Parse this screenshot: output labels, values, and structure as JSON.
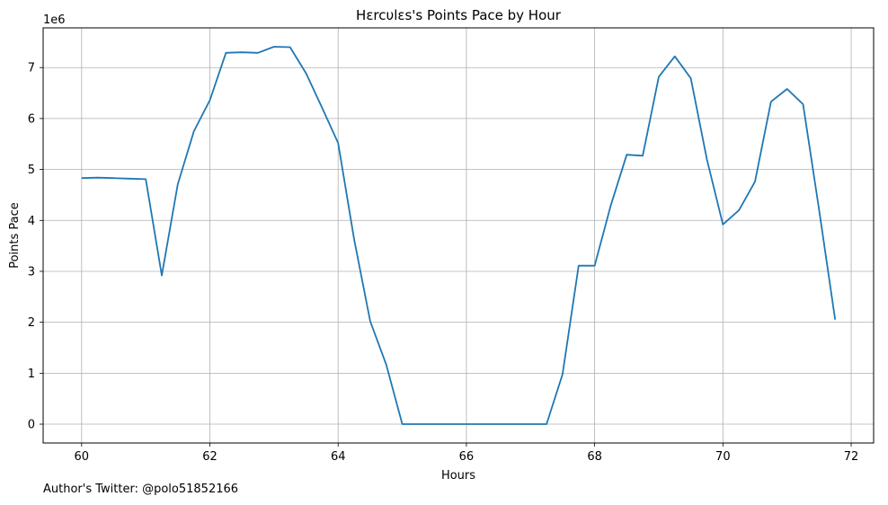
{
  "chart_data": {
    "type": "line",
    "title": "Hɛrcυlɛs's Points Pace by Hour",
    "xlabel": "Hours",
    "ylabel": "Points Pace",
    "y_offset_label": "1e6",
    "xlim": [
      59.4,
      72.35
    ],
    "ylim": [
      -0.37,
      7.78
    ],
    "x_ticks": [
      60,
      62,
      64,
      66,
      68,
      70,
      72
    ],
    "y_ticks": [
      0,
      1,
      2,
      3,
      4,
      5,
      6,
      7
    ],
    "grid": true,
    "line_color": "#1f77b4",
    "series": [
      {
        "x": [
          60,
          60.25,
          60.5,
          60.75,
          61,
          61.25,
          61.5,
          61.75,
          62,
          62.25,
          62.5,
          62.75,
          63,
          63.25,
          63.5,
          63.75,
          64,
          64.25,
          64.5,
          64.75,
          65,
          65.25,
          65.5,
          65.75,
          66,
          66.25,
          66.5,
          66.75,
          67,
          67.25,
          67.5,
          67.75,
          68,
          68.25,
          68.5,
          68.75,
          69,
          69.25,
          69.5,
          69.75,
          70,
          70.25,
          70.5,
          70.75,
          71,
          71.25,
          71.5,
          71.75
        ],
        "values": [
          4.83,
          4.84,
          4.83,
          4.82,
          4.81,
          2.92,
          4.71,
          5.75,
          6.36,
          7.29,
          7.3,
          7.29,
          7.41,
          7.4,
          6.89,
          6.21,
          5.52,
          3.62,
          2.02,
          1.17,
          0.0,
          0.0,
          0.0,
          0.0,
          0.0,
          0.0,
          0.0,
          0.0,
          0.0,
          0.0,
          0.98,
          3.11,
          3.11,
          4.29,
          5.29,
          5.27,
          6.82,
          7.22,
          6.79,
          5.2,
          3.92,
          4.2,
          4.76,
          6.33,
          6.58,
          6.28,
          4.2,
          2.05
        ]
      }
    ]
  },
  "footer": {
    "text": "Author's Twitter: @polo51852166"
  }
}
